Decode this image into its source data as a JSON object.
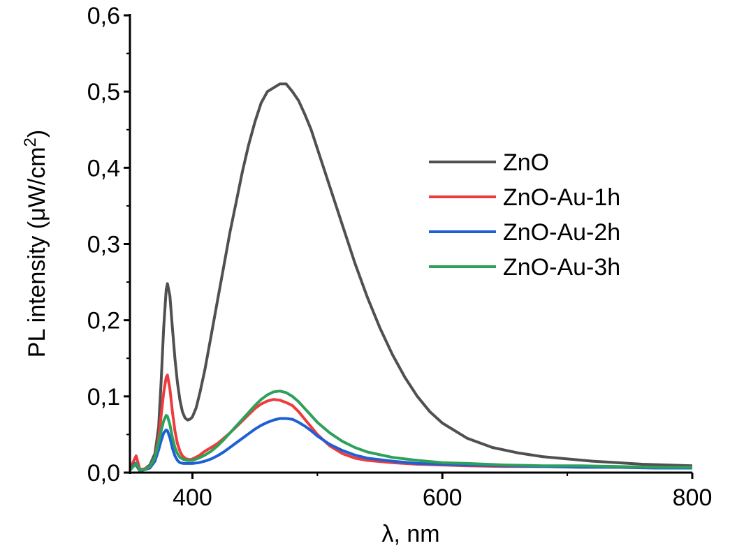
{
  "chart_data": {
    "type": "line",
    "xlabel": "λ, nm",
    "ylabel_main": "PL intensity (μW/cm",
    "ylabel_sup": "2",
    "ylabel_close": ")",
    "xlim": [
      350,
      800
    ],
    "ylim": [
      0.0,
      0.6
    ],
    "xticks": [
      400,
      600,
      800
    ],
    "xtick_labels": [
      "400",
      "600",
      "800"
    ],
    "xminor": [
      500,
      700
    ],
    "yticks": [
      0.0,
      0.1,
      0.2,
      0.3,
      0.4,
      0.5,
      0.6
    ],
    "ytick_labels": [
      "0,0",
      "0,1",
      "0,2",
      "0,3",
      "0,4",
      "0,5",
      "0,6"
    ],
    "grid": false,
    "legend_position": "right",
    "series": [
      {
        "name": "ZnO",
        "color": "#505050",
        "points": [
          [
            350,
            0.005
          ],
          [
            355,
            0.012
          ],
          [
            358,
            0.003
          ],
          [
            362,
            0.005
          ],
          [
            366,
            0.01
          ],
          [
            370,
            0.025
          ],
          [
            373,
            0.06
          ],
          [
            375,
            0.12
          ],
          [
            377,
            0.19
          ],
          [
            379,
            0.24
          ],
          [
            380,
            0.248
          ],
          [
            382,
            0.232
          ],
          [
            384,
            0.19
          ],
          [
            386,
            0.15
          ],
          [
            388,
            0.118
          ],
          [
            390,
            0.095
          ],
          [
            392,
            0.08
          ],
          [
            394,
            0.072
          ],
          [
            396,
            0.069
          ],
          [
            398,
            0.07
          ],
          [
            400,
            0.073
          ],
          [
            403,
            0.085
          ],
          [
            406,
            0.105
          ],
          [
            410,
            0.135
          ],
          [
            415,
            0.18
          ],
          [
            420,
            0.225
          ],
          [
            425,
            0.27
          ],
          [
            430,
            0.315
          ],
          [
            435,
            0.355
          ],
          [
            440,
            0.395
          ],
          [
            445,
            0.43
          ],
          [
            450,
            0.46
          ],
          [
            455,
            0.485
          ],
          [
            460,
            0.5
          ],
          [
            465,
            0.505
          ],
          [
            470,
            0.51
          ],
          [
            475,
            0.51
          ],
          [
            480,
            0.5
          ],
          [
            485,
            0.488
          ],
          [
            490,
            0.47
          ],
          [
            495,
            0.45
          ],
          [
            500,
            0.425
          ],
          [
            510,
            0.375
          ],
          [
            520,
            0.325
          ],
          [
            530,
            0.275
          ],
          [
            540,
            0.23
          ],
          [
            550,
            0.19
          ],
          [
            560,
            0.155
          ],
          [
            570,
            0.125
          ],
          [
            580,
            0.1
          ],
          [
            590,
            0.08
          ],
          [
            600,
            0.065
          ],
          [
            620,
            0.045
          ],
          [
            640,
            0.033
          ],
          [
            660,
            0.026
          ],
          [
            680,
            0.021
          ],
          [
            700,
            0.018
          ],
          [
            720,
            0.015
          ],
          [
            740,
            0.013
          ],
          [
            760,
            0.011
          ],
          [
            780,
            0.01
          ],
          [
            800,
            0.009
          ]
        ]
      },
      {
        "name": "ZnO-Au-1h",
        "color": "#EE3B3B",
        "points": [
          [
            350,
            0.005
          ],
          [
            355,
            0.022
          ],
          [
            358,
            0.004
          ],
          [
            362,
            0.005
          ],
          [
            366,
            0.008
          ],
          [
            370,
            0.02
          ],
          [
            373,
            0.045
          ],
          [
            375,
            0.075
          ],
          [
            377,
            0.105
          ],
          [
            379,
            0.125
          ],
          [
            380,
            0.128
          ],
          [
            382,
            0.11
          ],
          [
            384,
            0.08
          ],
          [
            386,
            0.055
          ],
          [
            388,
            0.038
          ],
          [
            390,
            0.028
          ],
          [
            392,
            0.022
          ],
          [
            395,
            0.018
          ],
          [
            398,
            0.017
          ],
          [
            400,
            0.018
          ],
          [
            405,
            0.022
          ],
          [
            410,
            0.028
          ],
          [
            415,
            0.033
          ],
          [
            420,
            0.038
          ],
          [
            425,
            0.045
          ],
          [
            430,
            0.052
          ],
          [
            435,
            0.06
          ],
          [
            440,
            0.068
          ],
          [
            445,
            0.076
          ],
          [
            450,
            0.084
          ],
          [
            455,
            0.09
          ],
          [
            460,
            0.094
          ],
          [
            465,
            0.096
          ],
          [
            470,
            0.095
          ],
          [
            475,
            0.092
          ],
          [
            480,
            0.088
          ],
          [
            485,
            0.08
          ],
          [
            490,
            0.07
          ],
          [
            495,
            0.06
          ],
          [
            500,
            0.05
          ],
          [
            510,
            0.035
          ],
          [
            520,
            0.025
          ],
          [
            530,
            0.019
          ],
          [
            540,
            0.016
          ],
          [
            560,
            0.013
          ],
          [
            580,
            0.011
          ],
          [
            600,
            0.01
          ],
          [
            620,
            0.009
          ],
          [
            650,
            0.008
          ],
          [
            680,
            0.008
          ],
          [
            710,
            0.008
          ],
          [
            740,
            0.007
          ],
          [
            770,
            0.007
          ],
          [
            800,
            0.006
          ]
        ]
      },
      {
        "name": "ZnO-Au-2h",
        "color": "#1E5FD6",
        "points": [
          [
            350,
            0.003
          ],
          [
            354,
            0.012
          ],
          [
            358,
            0.002
          ],
          [
            362,
            0.004
          ],
          [
            366,
            0.006
          ],
          [
            370,
            0.015
          ],
          [
            373,
            0.03
          ],
          [
            375,
            0.042
          ],
          [
            377,
            0.052
          ],
          [
            379,
            0.056
          ],
          [
            380,
            0.055
          ],
          [
            382,
            0.046
          ],
          [
            384,
            0.032
          ],
          [
            386,
            0.022
          ],
          [
            388,
            0.016
          ],
          [
            390,
            0.013
          ],
          [
            393,
            0.012
          ],
          [
            396,
            0.012
          ],
          [
            400,
            0.012
          ],
          [
            405,
            0.013
          ],
          [
            410,
            0.015
          ],
          [
            415,
            0.018
          ],
          [
            420,
            0.022
          ],
          [
            425,
            0.027
          ],
          [
            430,
            0.033
          ],
          [
            435,
            0.039
          ],
          [
            440,
            0.045
          ],
          [
            445,
            0.051
          ],
          [
            450,
            0.057
          ],
          [
            455,
            0.062
          ],
          [
            460,
            0.066
          ],
          [
            465,
            0.069
          ],
          [
            470,
            0.071
          ],
          [
            475,
            0.071
          ],
          [
            480,
            0.07
          ],
          [
            485,
            0.066
          ],
          [
            490,
            0.061
          ],
          [
            495,
            0.055
          ],
          [
            500,
            0.048
          ],
          [
            510,
            0.037
          ],
          [
            520,
            0.029
          ],
          [
            530,
            0.023
          ],
          [
            540,
            0.019
          ],
          [
            560,
            0.015
          ],
          [
            580,
            0.012
          ],
          [
            600,
            0.011
          ],
          [
            620,
            0.01
          ],
          [
            650,
            0.009
          ],
          [
            680,
            0.008
          ],
          [
            710,
            0.007
          ],
          [
            740,
            0.007
          ],
          [
            770,
            0.006
          ],
          [
            800,
            0.006
          ]
        ]
      },
      {
        "name": "ZnO-Au-3h",
        "color": "#2DA05A",
        "points": [
          [
            350,
            0.003
          ],
          [
            355,
            0.012
          ],
          [
            358,
            0.003
          ],
          [
            362,
            0.004
          ],
          [
            366,
            0.008
          ],
          [
            370,
            0.02
          ],
          [
            373,
            0.04
          ],
          [
            375,
            0.055
          ],
          [
            377,
            0.068
          ],
          [
            379,
            0.075
          ],
          [
            380,
            0.074
          ],
          [
            382,
            0.063
          ],
          [
            384,
            0.046
          ],
          [
            386,
            0.033
          ],
          [
            388,
            0.025
          ],
          [
            390,
            0.02
          ],
          [
            393,
            0.017
          ],
          [
            396,
            0.016
          ],
          [
            400,
            0.016
          ],
          [
            405,
            0.019
          ],
          [
            410,
            0.023
          ],
          [
            415,
            0.028
          ],
          [
            420,
            0.035
          ],
          [
            425,
            0.043
          ],
          [
            430,
            0.052
          ],
          [
            435,
            0.061
          ],
          [
            440,
            0.07
          ],
          [
            445,
            0.079
          ],
          [
            450,
            0.088
          ],
          [
            455,
            0.096
          ],
          [
            460,
            0.102
          ],
          [
            465,
            0.106
          ],
          [
            470,
            0.107
          ],
          [
            475,
            0.105
          ],
          [
            480,
            0.1
          ],
          [
            485,
            0.093
          ],
          [
            490,
            0.084
          ],
          [
            495,
            0.075
          ],
          [
            500,
            0.066
          ],
          [
            510,
            0.052
          ],
          [
            520,
            0.041
          ],
          [
            530,
            0.033
          ],
          [
            540,
            0.027
          ],
          [
            560,
            0.02
          ],
          [
            580,
            0.016
          ],
          [
            600,
            0.013
          ],
          [
            620,
            0.012
          ],
          [
            650,
            0.01
          ],
          [
            680,
            0.009
          ],
          [
            710,
            0.009
          ],
          [
            740,
            0.008
          ],
          [
            770,
            0.007
          ],
          [
            800,
            0.007
          ]
        ]
      }
    ]
  }
}
